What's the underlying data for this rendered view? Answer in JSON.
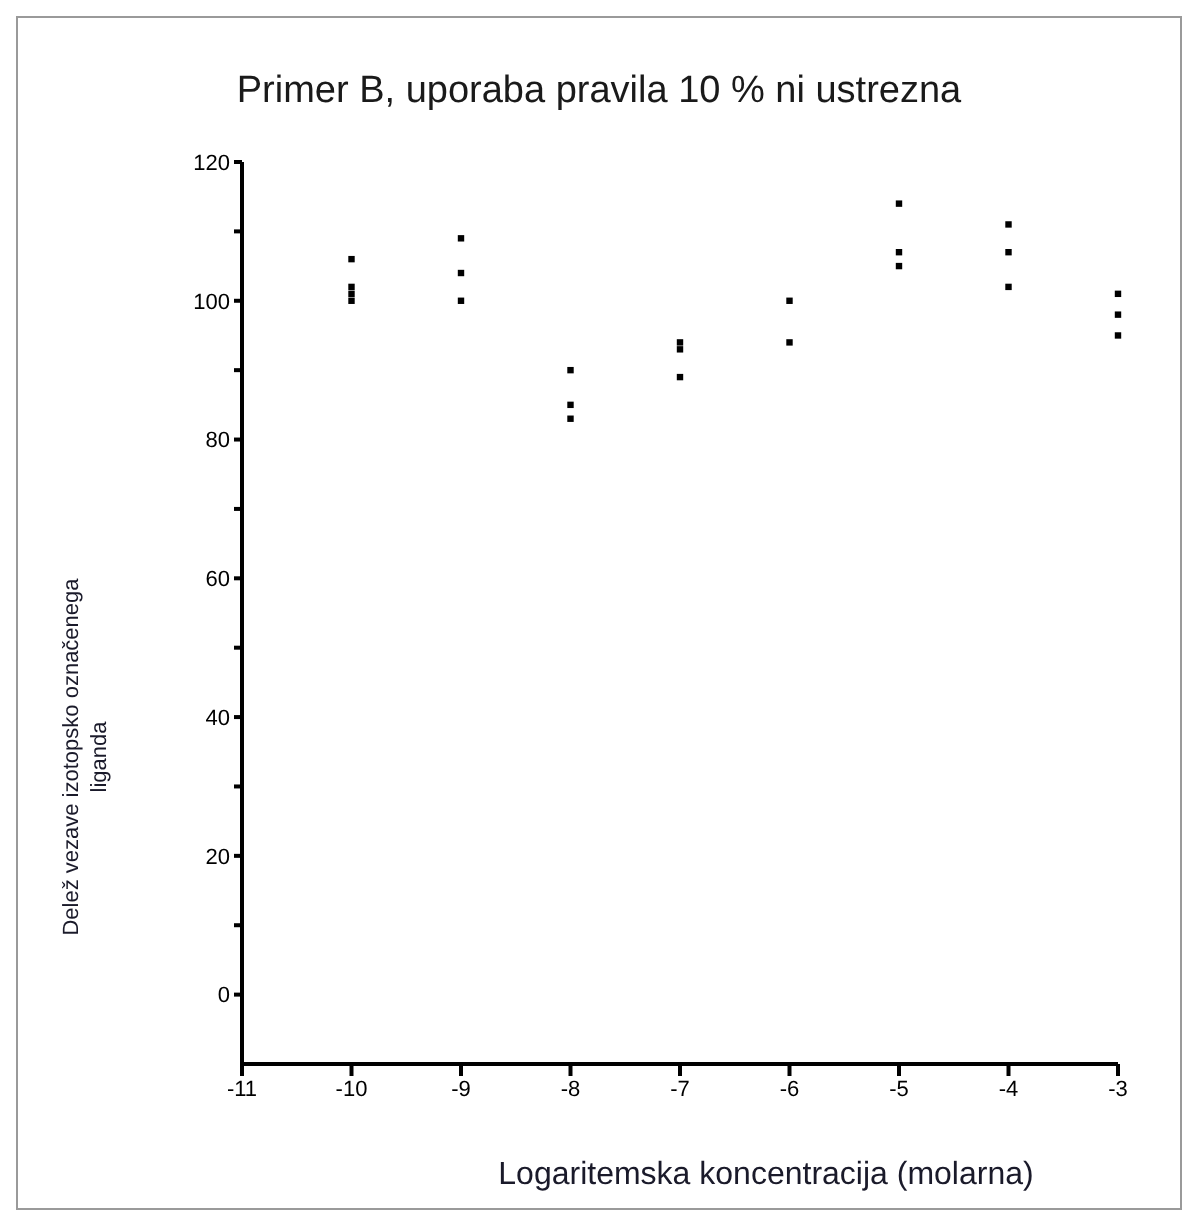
{
  "chart_data": {
    "type": "scatter",
    "title": "Primer B, uporaba pravila 10 % ni ustrezna",
    "xlabel": "Logaritemska koncentracija (molarna)",
    "ylabel": "Delež vezave izotopsko označenega liganda",
    "marker": "square",
    "xlim": [
      -11,
      -3
    ],
    "xticks": [
      -11,
      -10,
      -9,
      -8,
      -7,
      -6,
      -5,
      -4,
      -3
    ],
    "ylim": [
      -10,
      120
    ],
    "yticks": [
      0,
      {
        "value": 10,
        "label": null
      },
      20,
      {
        "value": 30,
        "label": null
      },
      40,
      {
        "value": 50,
        "label": null
      },
      60,
      {
        "value": 70,
        "label": null
      },
      80,
      {
        "value": 90,
        "label": null
      },
      100,
      {
        "value": 110,
        "label": null
      },
      120
    ],
    "series": [
      {
        "color": "#000000",
        "x": [
          -10,
          -10,
          -10,
          -10,
          -9,
          -9,
          -9,
          -8,
          -8,
          -8,
          -7,
          -7,
          -7,
          -6,
          -6,
          -5,
          -5,
          -5,
          -4,
          -4,
          -4,
          -3,
          -3,
          -3
        ],
        "values": [
          106,
          102,
          101,
          100,
          109,
          104,
          100,
          90,
          85,
          83,
          94,
          93,
          89,
          100,
          94,
          114,
          107,
          105,
          111,
          107,
          102,
          101,
          98,
          95
        ]
      }
    ]
  }
}
